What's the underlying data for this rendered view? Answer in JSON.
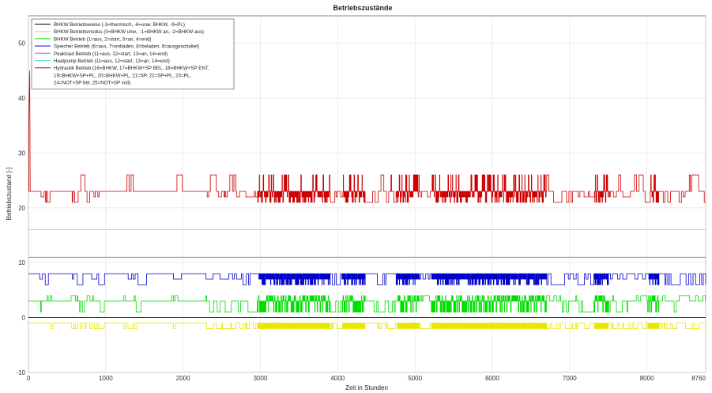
{
  "chart_data": {
    "type": "line",
    "title": "Betriebszustände",
    "xlabel": "Zeit in Stunden",
    "ylabel": "Betriebszustand [-]",
    "xlim": [
      0,
      8760
    ],
    "ylim": [
      -10,
      55
    ],
    "xticks": [
      0,
      1000,
      2000,
      3000,
      4000,
      5000,
      6000,
      7000,
      8000,
      8760
    ],
    "yticks": [
      -10,
      0,
      10,
      20,
      30,
      40,
      50
    ],
    "grid": true,
    "legend_position": "top-left",
    "legend": [
      "BHKW Betriebsweise (-3=thermisch, -6=unw. BHKW, -9=PL)",
      "BHKW Betriebsmodus (0=BHKW unw., -1=BHKW an, -2=BHKW aus)",
      "BHKW Betrieb (1=aus, 2=start, 3=an, 4=end)",
      "Speicher Betrieb (6=aus, 7=entladen, 8=beladen, 9=ausgeschaltet)",
      "Peakload Betrieb (11=aus, 12=start, 13=an, 14=end)",
      "Heatpump Betrieb (11=aus, 12=start, 13=an, 14=end)",
      "Hydraulik Betrieb (16=BHKW, 17=BHKW+SP BEL, 18=BHKW+SP ENT,",
      "19=BHKW+SP+PL, 20=BHKW+PL, 21=SP, 22=SP+PL, 23=PL,",
      "24=NOT+SP bel, 25=NOT+SP voll)"
    ],
    "series": [
      {
        "name": "BHKW Betriebsweise",
        "color": "#000000",
        "base": 0,
        "alt": [],
        "style": "flat"
      },
      {
        "name": "BHKW Betriebsmodus",
        "color": "#e6e600",
        "base": -1,
        "alt": [
          -2
        ],
        "style": "toggle"
      },
      {
        "name": "BHKW Betrieb",
        "color": "#00dd00",
        "base": 3,
        "alt": [
          1,
          4
        ],
        "style": "toggle"
      },
      {
        "name": "Speicher Betrieb",
        "color": "#0000cc",
        "base": 8,
        "alt": [
          7,
          6
        ],
        "style": "toggle"
      },
      {
        "name": "Peakload Betrieb",
        "color": "#9966cc",
        "base": 11,
        "alt": [],
        "style": "flat"
      },
      {
        "name": "Heatpump Betrieb",
        "color": "#66ddcc",
        "base": 16,
        "alt": [],
        "style": "flat"
      },
      {
        "name": "Hydraulik Betrieb",
        "color": "#cc0000",
        "base": 23,
        "alt": [
          22,
          26,
          21
        ],
        "style": "toggle"
      }
    ],
    "dense_ranges": [
      [
        2950,
        3900
      ],
      [
        4050,
        4350
      ],
      [
        4750,
        5050
      ],
      [
        5200,
        6700
      ],
      [
        7300,
        7500
      ],
      [
        8000,
        8150
      ]
    ],
    "sparse_ranges": [
      [
        100,
        300
      ],
      [
        500,
        900
      ],
      [
        1150,
        1400
      ],
      [
        1800,
        1900
      ],
      [
        2200,
        2950
      ],
      [
        3900,
        4050
      ],
      [
        4400,
        4750
      ],
      [
        5050,
        5200
      ],
      [
        6700,
        7300
      ],
      [
        7500,
        8000
      ],
      [
        8150,
        8760
      ]
    ],
    "spike": {
      "x": 0,
      "values": [
        37,
        45
      ]
    }
  }
}
